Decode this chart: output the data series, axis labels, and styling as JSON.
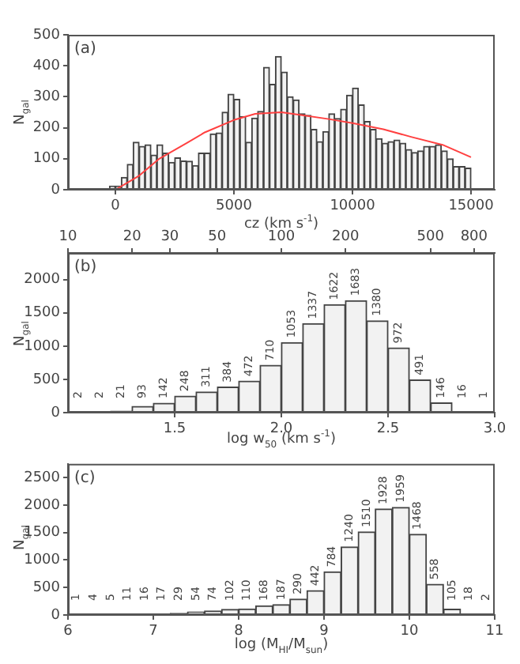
{
  "chart_data": [
    {
      "type": "histogram",
      "xlabel": "cz (km s$^{-1}$)",
      "ylabel": "N$_{gal}$",
      "annotations": [
        "(a)"
      ],
      "xlim": [
        -2000,
        16000
      ],
      "xticks": [
        0,
        5000,
        10000,
        15000
      ],
      "ylim": [
        0,
        500
      ],
      "yticks": [
        0,
        100,
        200,
        300,
        400,
        500
      ],
      "legend": false,
      "series": [
        {
          "type": "histogram",
          "color": "#f2f2f2",
          "bins": [
            -500,
            -250,
            0,
            250,
            500,
            750,
            1000,
            1250,
            1500,
            1750,
            2000,
            2250,
            2500,
            2750,
            3000,
            3250,
            3500,
            3750,
            4000,
            4250,
            4500,
            4750,
            5000,
            5250,
            5500,
            5750,
            6000,
            6250,
            6500,
            6750,
            7000,
            7250,
            7500,
            7750,
            8000,
            8250,
            8500,
            8750,
            9000,
            9250,
            9500,
            9750,
            10000,
            10250,
            10500,
            10750,
            11000,
            11250,
            11500,
            11750,
            12000,
            12250,
            12500,
            12750,
            13000,
            13250,
            13500,
            13750,
            14000,
            14250,
            14500,
            14750,
            15000
          ],
          "values": [
            3,
            12,
            12,
            40,
            82,
            153,
            140,
            145,
            112,
            145,
            118,
            88,
            103,
            93,
            92,
            78,
            118,
            118,
            180,
            183,
            250,
            308,
            292,
            236,
            153,
            231,
            253,
            395,
            340,
            430,
            380,
            300,
            290,
            245,
            240,
            195,
            155,
            188,
            245,
            230,
            260,
            305,
            328,
            274,
            220,
            195,
            165,
            150,
            155,
            160,
            150,
            130,
            120,
            125,
            140,
            140,
            145,
            125,
            100,
            75,
            75,
            70
          ]
        },
        {
          "type": "line",
          "color": "#ff4040",
          "x": [
            0,
            1000,
            1850,
            3000,
            3770,
            5000,
            5900,
            7000,
            7950,
            9000,
            10000,
            11300,
            12500,
            13800,
            15000
          ],
          "values": [
            0,
            45,
            100,
            150,
            185,
            225,
            245,
            250,
            240,
            228,
            215,
            195,
            170,
            145,
            105
          ]
        }
      ]
    },
    {
      "type": "histogram",
      "color": "#f2f2f2",
      "xlabel": "log w$_{50}$ (km s$^{-1}$)",
      "ylabel": "N$_{gal}$",
      "annotations": [
        "(b)"
      ],
      "data_labels": true,
      "legend": false,
      "bins": [
        1.0,
        1.1,
        1.2,
        1.3,
        1.4,
        1.5,
        1.6,
        1.7,
        1.8,
        1.9,
        2.0,
        2.1,
        2.2,
        2.3,
        2.4,
        2.5,
        2.6,
        2.7,
        2.8,
        2.9,
        3.0
      ],
      "values": [
        2,
        2,
        21,
        93,
        142,
        248,
        311,
        384,
        472,
        710,
        1053,
        1337,
        1622,
        1683,
        1380,
        972,
        491,
        146,
        16,
        1
      ],
      "xlim": [
        1.0,
        3.0
      ],
      "xticks": [
        1.5,
        {
          "value": 2,
          "label": "2.0"
        },
        2.5,
        {
          "value": 3,
          "label": "3.0"
        }
      ],
      "x2lim": [
        10,
        1000
      ],
      "x2ticks": [
        10,
        20,
        30,
        50,
        100,
        200,
        500,
        800
      ],
      "log": "x2",
      "ylim": [
        0,
        2400
      ],
      "yticks": [
        0,
        500,
        1000,
        1500,
        2000
      ]
    },
    {
      "type": "histogram",
      "color": "#f2f2f2",
      "xlabel": "log (M$_{HI}$/M$_{sun}$)",
      "ylabel": "N$_{gal}$",
      "annotations": [
        "(c)"
      ],
      "data_labels": true,
      "legend": false,
      "bins": [
        6.0,
        6.2,
        6.4,
        6.6,
        6.8,
        7.0,
        7.2,
        7.4,
        7.6,
        7.8,
        8.0,
        8.2,
        8.4,
        8.6,
        8.8,
        9.0,
        9.2,
        9.4,
        9.6,
        9.8,
        10.0,
        10.2,
        10.4,
        10.6,
        10.8,
        11.0
      ],
      "values": [
        1,
        4,
        5,
        11,
        16,
        17,
        29,
        54,
        74,
        102,
        110,
        168,
        187,
        290,
        442,
        784,
        1240,
        1510,
        1928,
        1959,
        1468,
        558,
        105,
        18,
        2
      ],
      "xlim": [
        6,
        11
      ],
      "xticks": [
        6,
        7,
        8,
        9,
        10,
        11
      ],
      "ylim": [
        0,
        2750
      ],
      "yticks": [
        0,
        500,
        1000,
        1500,
        2000,
        2500
      ]
    }
  ]
}
